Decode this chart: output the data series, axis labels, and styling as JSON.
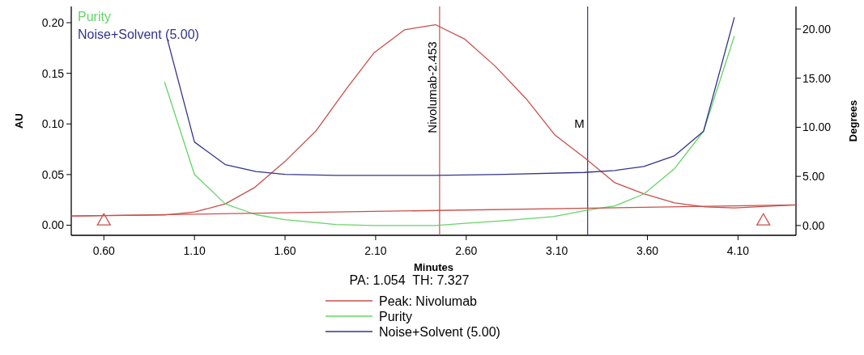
{
  "chart_data": {
    "type": "line",
    "xlabel": "Minutes",
    "ylabel": "AU",
    "y2label": "Degrees",
    "xlim": [
      0.42,
      4.42
    ],
    "xticks": [
      {
        "value": 0.6,
        "label": "0.60"
      },
      {
        "value": 1.1,
        "label": "1.10"
      },
      {
        "value": 1.6,
        "label": "1.60"
      },
      {
        "value": 2.1,
        "label": "2.10"
      },
      {
        "value": 2.6,
        "label": "2.60"
      },
      {
        "value": 3.1,
        "label": "3.10"
      },
      {
        "value": 3.6,
        "label": "3.60"
      },
      {
        "value": 4.1,
        "label": "4.10"
      }
    ],
    "ylim": [
      -0.01,
      0.216
    ],
    "yticks": [
      {
        "value": 0,
        "label": "0.00"
      },
      {
        "value": 0.05,
        "label": "0.05"
      },
      {
        "value": 0.1,
        "label": "0.10"
      },
      {
        "value": 0.15,
        "label": "0.15"
      },
      {
        "value": 0.2,
        "label": "0.20"
      }
    ],
    "y2lim": [
      -1,
      22.3
    ],
    "y2ticks": [
      {
        "value": 0,
        "label": "0.00"
      },
      {
        "value": 5,
        "label": "5.00"
      },
      {
        "value": 10,
        "label": "10.00"
      },
      {
        "value": 15,
        "label": "15.00"
      },
      {
        "value": 20,
        "label": "20.00"
      }
    ],
    "series": [
      {
        "name": "Peak: Nivolumab",
        "color": "#c8504a",
        "x": [
          0.42,
          0.935,
          1.1,
          1.27,
          1.43,
          1.6,
          1.77,
          1.94,
          2.09,
          2.26,
          2.43,
          2.59,
          2.76,
          2.93,
          3.09,
          3.25,
          3.42,
          3.58,
          3.75,
          3.92,
          4.08,
          4.42
        ],
        "values": [
          0.009,
          0.01,
          0.013,
          0.021,
          0.037,
          0.063,
          0.093,
          0.135,
          0.17,
          0.193,
          0.198,
          0.184,
          0.157,
          0.125,
          0.089,
          0.067,
          0.042,
          0.031,
          0.022,
          0.018,
          0.017,
          0.02
        ]
      },
      {
        "name": "Purity",
        "color": "#66d466",
        "axis": "y2",
        "x": [
          0.935,
          1.1,
          1.27,
          1.44,
          1.6,
          1.88,
          2.09,
          2.43,
          2.58,
          2.81,
          3.08,
          3.25,
          3.42,
          3.58,
          3.75,
          3.91,
          4.08
        ],
        "values": [
          14.6,
          5.2,
          2.2,
          1.1,
          0.6,
          0.1,
          0,
          0,
          0.2,
          0.5,
          0.9,
          1.5,
          2,
          3.2,
          5.8,
          9.6,
          19.3
        ]
      },
      {
        "name": "Noise+Solvent (5.00)",
        "color": "#33338a",
        "axis": "y2",
        "x": [
          0.95,
          1.1,
          1.27,
          1.44,
          1.6,
          1.88,
          2.43,
          2.81,
          3.25,
          3.42,
          3.58,
          3.75,
          3.91,
          4.08
        ],
        "values": [
          19,
          8.5,
          6.2,
          5.5,
          5.2,
          5.1,
          5.1,
          5.2,
          5.4,
          5.6,
          6,
          7.1,
          9.6,
          21.2
        ]
      },
      {
        "color": "#c8504a",
        "x": [
          0.42,
          4.42
        ],
        "values": [
          0.009,
          0.02
        ]
      },
      {
        "type": "scatter",
        "marker": "triangle",
        "color": "#c8504a",
        "x": [
          0.6,
          4.24
        ],
        "values": [
          0.004,
          0.004
        ]
      }
    ],
    "ref_lines": [
      {
        "axis": "x",
        "value": 2.453,
        "label": "Nivolumab-2.453",
        "color": "#c8504a"
      },
      {
        "axis": "x",
        "value": 3.27,
        "label": "M",
        "color": "#33338a"
      }
    ],
    "annotations": [
      "PA: 1.054  TH: 7.327"
    ],
    "legend": "bottom"
  }
}
